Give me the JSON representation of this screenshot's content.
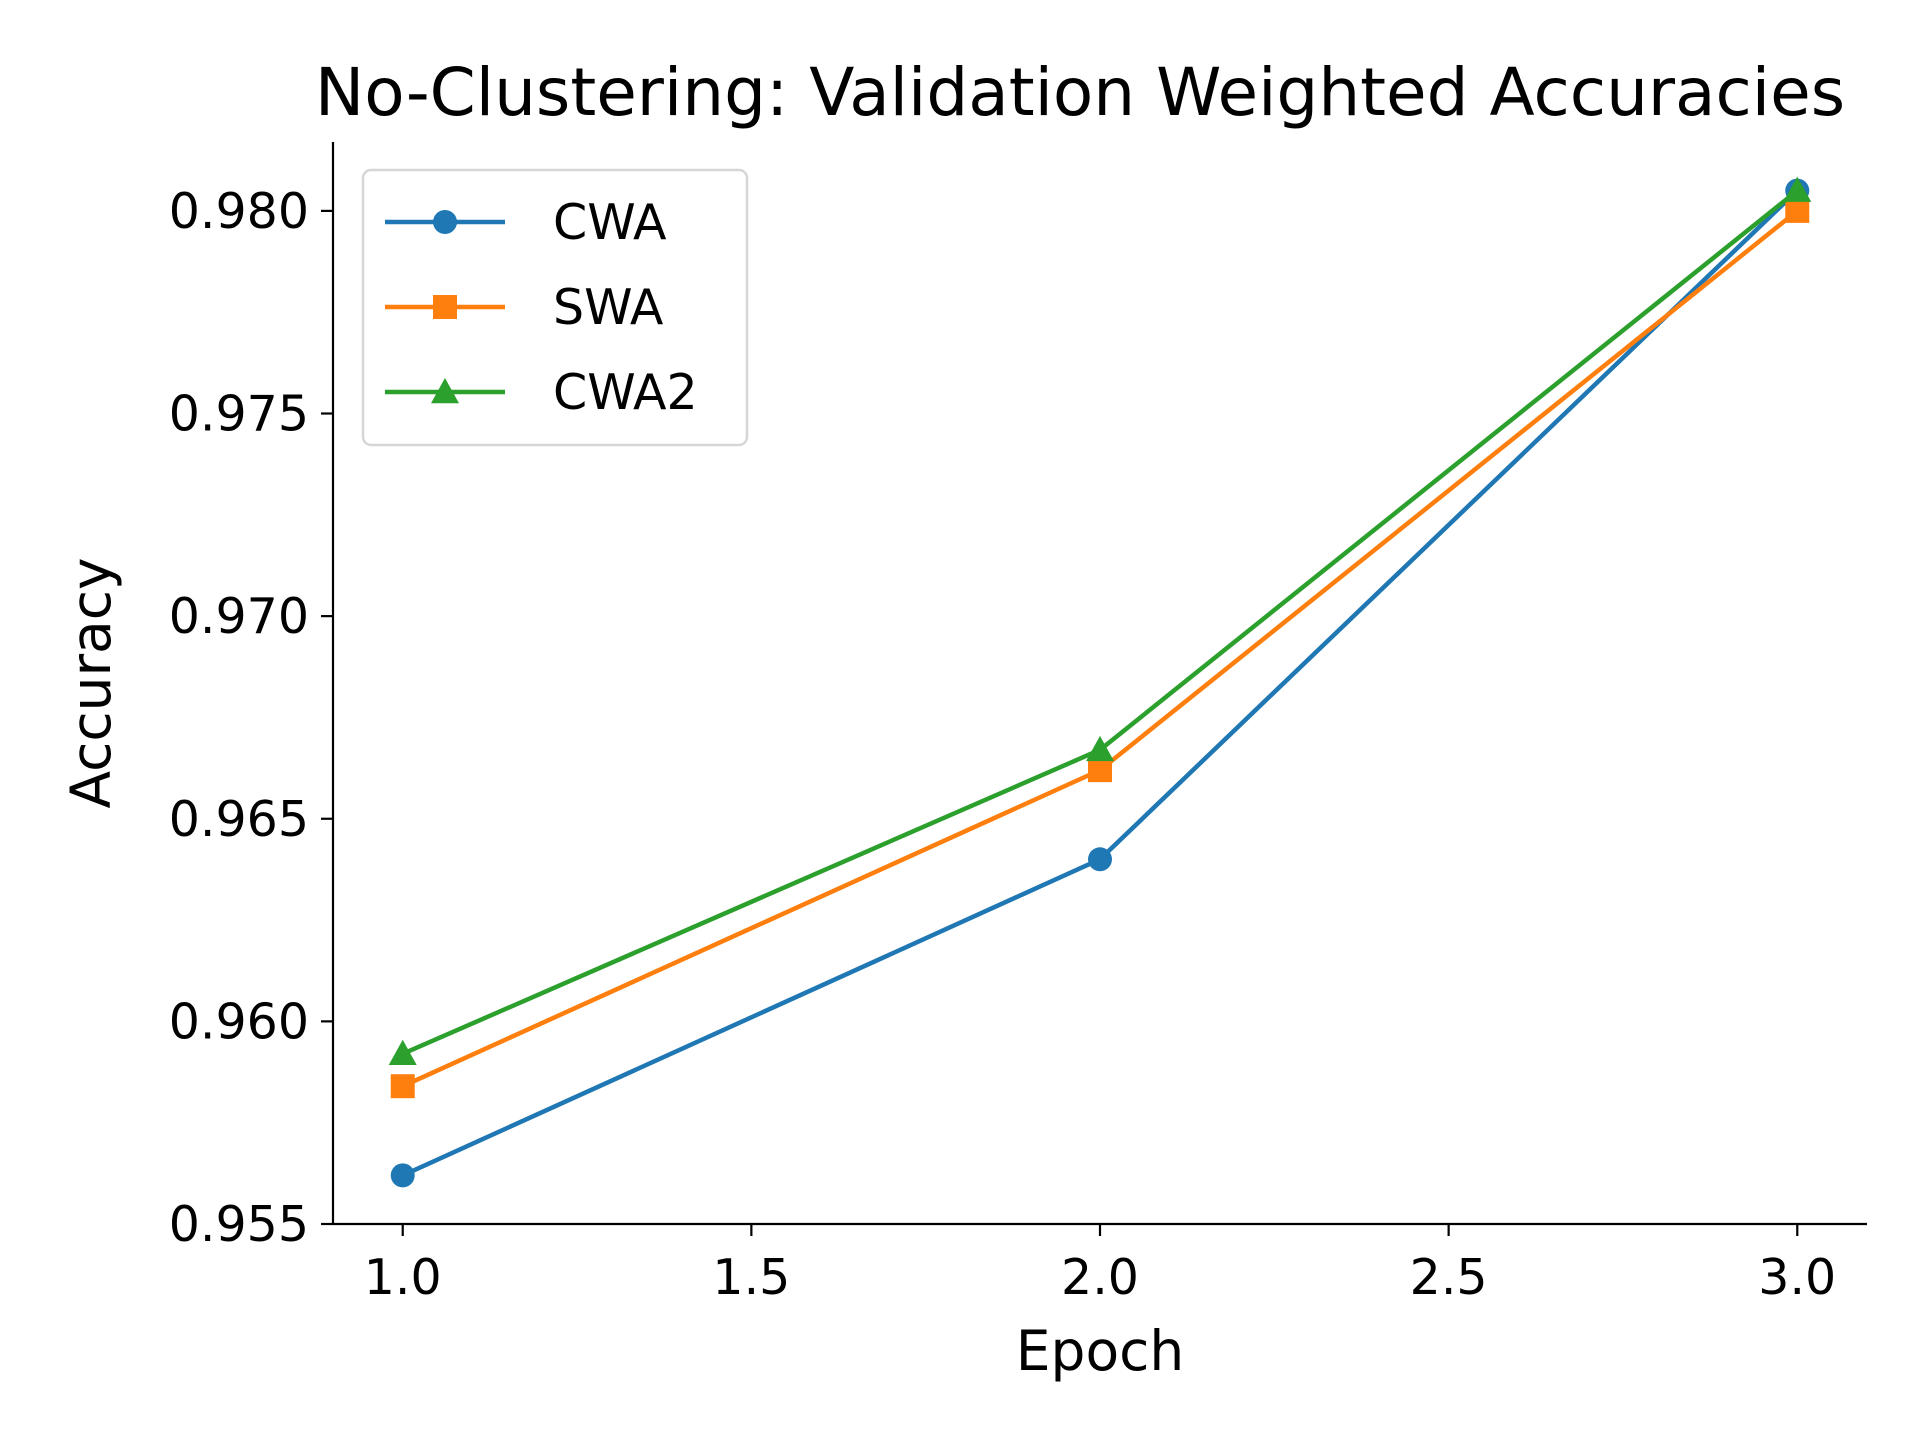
{
  "chart_data": {
    "type": "line",
    "title": "No-Clustering: Validation Weighted Accuracies",
    "xlabel": "Epoch",
    "ylabel": "Accuracy",
    "x": [
      1.0,
      2.0,
      3.0
    ],
    "xlim": [
      0.9,
      3.1
    ],
    "ylim": [
      0.955,
      0.9817
    ],
    "xticks": [
      1.0,
      1.5,
      2.0,
      2.5,
      3.0
    ],
    "xtick_labels": [
      "1.0",
      "1.5",
      "2.0",
      "2.5",
      "3.0"
    ],
    "yticks": [
      0.955,
      0.96,
      0.965,
      0.97,
      0.975,
      0.98
    ],
    "ytick_labels": [
      "0.955",
      "0.960",
      "0.965",
      "0.970",
      "0.975",
      "0.980"
    ],
    "grid": false,
    "legend_position": "top-left",
    "series": [
      {
        "name": "CWA",
        "marker": "circle",
        "color": "#1f77b4",
        "values": [
          0.9562,
          0.964,
          0.9805
        ]
      },
      {
        "name": "SWA",
        "marker": "square",
        "color": "#ff7f0e",
        "values": [
          0.9584,
          0.9662,
          0.98
        ]
      },
      {
        "name": "CWA2",
        "marker": "triangle",
        "color": "#2ca02c",
        "values": [
          0.9592,
          0.9667,
          0.9805
        ]
      }
    ]
  }
}
